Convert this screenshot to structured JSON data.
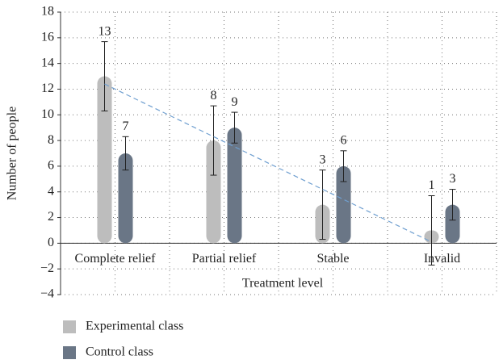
{
  "chart_data": {
    "type": "bar",
    "x_label": "Treatment level",
    "y_label": "Number of people",
    "categories": [
      "Complete relief",
      "Partial relief",
      "Stable",
      "Invalid"
    ],
    "series": [
      {
        "name": "Experimental class",
        "color": "#bdbdbd",
        "values": [
          13,
          8,
          3,
          1
        ],
        "errors": [
          2.7,
          2.7,
          2.7,
          2.7
        ]
      },
      {
        "name": "Control class",
        "color": "#6a7686",
        "values": [
          7,
          9,
          6,
          3
        ],
        "errors": [
          1.3,
          1.2,
          1.2,
          1.2
        ]
      }
    ],
    "ylim": [
      -4,
      18
    ],
    "yticks": [
      {
        "value": -4,
        "label": "−4"
      },
      {
        "value": -2,
        "label": "−2"
      },
      0,
      2,
      4,
      6,
      8,
      10,
      12,
      14,
      16,
      18
    ],
    "grid": true,
    "trendline": true,
    "trendline_color": "#6f9fd0"
  }
}
